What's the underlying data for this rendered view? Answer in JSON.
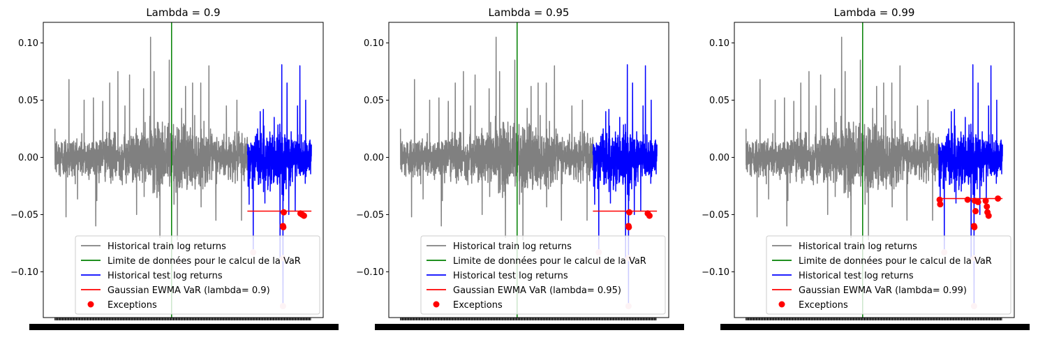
{
  "figure": {
    "legend_entries": [
      {
        "key": "train",
        "color": "#808080",
        "kind": "line"
      },
      {
        "key": "limit",
        "color": "#008000",
        "kind": "line"
      },
      {
        "key": "test",
        "color": "#0000ff",
        "kind": "line"
      },
      {
        "key": "var",
        "color": "#ff0000",
        "kind": "line"
      },
      {
        "key": "exceptions",
        "color": "#ff0000",
        "kind": "marker"
      }
    ]
  },
  "chart_data": [
    {
      "type": "line",
      "title": "Lambda = 0.9",
      "xlabel": "",
      "ylabel": "",
      "ylim": [
        -0.14,
        0.118
      ],
      "yticks": [
        0.1,
        0.05,
        0.0,
        -0.05,
        -0.1
      ],
      "ytick_labels": [
        "0.10",
        "0.05",
        "0.00",
        "−0.05",
        "−0.10"
      ],
      "xlim": [
        -100,
        2300
      ],
      "grid": false,
      "legend": "lower-right",
      "split_index": 1650,
      "n_points": 2200,
      "train_end_index": 1000,
      "var_level": -0.047,
      "labels": {
        "train": "Historical train log returns",
        "limit": "Limite de données pour le calcul de la VaR",
        "test": "Historical test log returns",
        "var": "Gaussian EWMA VaR (lambda= 0.9)",
        "exceptions": "Exceptions"
      },
      "exceptions": [
        {
          "x": 1955,
          "y": -0.06
        },
        {
          "x": 1958,
          "y": -0.061
        },
        {
          "x": 1962,
          "y": -0.048
        },
        {
          "x": 2105,
          "y": -0.049
        },
        {
          "x": 2120,
          "y": -0.05
        },
        {
          "x": 2135,
          "y": -0.051
        }
      ],
      "faded_exceptions": [
        {
          "x": 1700,
          "y": -0.083
        },
        {
          "x": 1955,
          "y": -0.088
        },
        {
          "x": 1955,
          "y": -0.13
        }
      ]
    },
    {
      "type": "line",
      "title": "Lambda = 0.95",
      "xlabel": "",
      "ylabel": "",
      "ylim": [
        -0.14,
        0.118
      ],
      "yticks": [
        0.1,
        0.05,
        0.0,
        -0.05,
        -0.1
      ],
      "ytick_labels": [
        "0.10",
        "0.05",
        "0.00",
        "−0.05",
        "−0.10"
      ],
      "xlim": [
        -100,
        2300
      ],
      "grid": false,
      "legend": "lower-right",
      "split_index": 1650,
      "n_points": 2200,
      "train_end_index": 1000,
      "var_level": -0.047,
      "labels": {
        "train": "Historical train log returns",
        "limit": "Limite de données pour le calcul de la VaR",
        "test": "Historical test log returns",
        "var": "Gaussian EWMA VaR (lambda= 0.95)",
        "exceptions": "Exceptions"
      },
      "exceptions": [
        {
          "x": 1955,
          "y": -0.06
        },
        {
          "x": 1958,
          "y": -0.061
        },
        {
          "x": 1962,
          "y": -0.048
        },
        {
          "x": 2120,
          "y": -0.049
        },
        {
          "x": 2135,
          "y": -0.051
        }
      ],
      "faded_exceptions": [
        {
          "x": 1700,
          "y": -0.083
        },
        {
          "x": 1955,
          "y": -0.088
        },
        {
          "x": 1955,
          "y": -0.13
        }
      ]
    },
    {
      "type": "line",
      "title": "Lambda = 0.99",
      "xlabel": "",
      "ylabel": "",
      "ylim": [
        -0.14,
        0.118
      ],
      "yticks": [
        0.1,
        0.05,
        0.0,
        -0.05,
        -0.1
      ],
      "ytick_labels": [
        "0.10",
        "0.05",
        "0.00",
        "−0.05",
        "−0.10"
      ],
      "xlim": [
        -100,
        2300
      ],
      "grid": false,
      "legend": "lower-right",
      "split_index": 1650,
      "n_points": 2200,
      "train_end_index": 1000,
      "var_level": -0.036,
      "labels": {
        "train": "Historical train log returns",
        "limit": "Limite de données pour le calcul de la VaR",
        "test": "Historical test log returns",
        "var": "Gaussian EWMA VaR (lambda= 0.99)",
        "exceptions": "Exceptions"
      },
      "exceptions": [
        {
          "x": 1660,
          "y": -0.037
        },
        {
          "x": 1665,
          "y": -0.041
        },
        {
          "x": 1900,
          "y": -0.037
        },
        {
          "x": 1955,
          "y": -0.06
        },
        {
          "x": 1958,
          "y": -0.061
        },
        {
          "x": 1962,
          "y": -0.038
        },
        {
          "x": 1968,
          "y": -0.047
        },
        {
          "x": 1990,
          "y": -0.039
        },
        {
          "x": 2055,
          "y": -0.038
        },
        {
          "x": 2065,
          "y": -0.043
        },
        {
          "x": 2070,
          "y": -0.048
        },
        {
          "x": 2080,
          "y": -0.051
        },
        {
          "x": 2160,
          "y": -0.036
        }
      ],
      "faded_exceptions": [
        {
          "x": 1700,
          "y": -0.083
        },
        {
          "x": 1955,
          "y": -0.088
        },
        {
          "x": 1955,
          "y": -0.13
        }
      ]
    }
  ]
}
